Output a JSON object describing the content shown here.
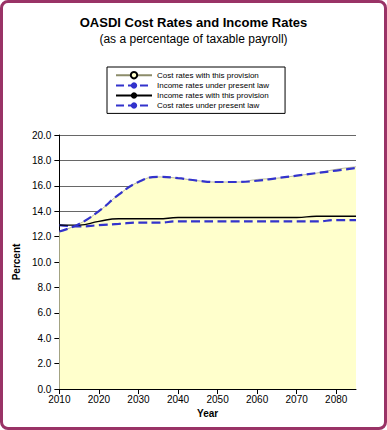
{
  "chart_data": {
    "type": "line",
    "title": "OASDI Cost Rates and Income Rates",
    "subtitle": "(as a percentage of taxable payroll)",
    "x_label": "Year",
    "y_label": "Percent",
    "x": [
      2010,
      2015,
      2020,
      2025,
      2030,
      2035,
      2040,
      2045,
      2050,
      2055,
      2060,
      2065,
      2070,
      2075,
      2080,
      2085
    ],
    "series": [
      {
        "name": "Cost rates with this provision",
        "type": "area",
        "color": "#ffffcc",
        "line_style": "solid",
        "values": [
          12.4,
          13.0,
          14.0,
          15.3,
          16.3,
          16.7,
          16.6,
          16.4,
          16.3,
          16.3,
          16.5,
          16.6,
          16.8,
          17.0,
          17.3,
          17.5
        ]
      },
      {
        "name": "Income rates under present law",
        "type": "line",
        "color": "#3333cc",
        "line_style": "dashed",
        "values": [
          12.9,
          12.8,
          12.9,
          13.0,
          13.1,
          13.1,
          13.2,
          13.2,
          13.2,
          13.2,
          13.2,
          13.2,
          13.2,
          13.2,
          13.3,
          13.3
        ]
      },
      {
        "name": "Income rates with this provision",
        "type": "line",
        "color": "#000000",
        "line_style": "solid",
        "values": [
          12.9,
          12.9,
          13.2,
          13.4,
          13.4,
          13.4,
          13.5,
          13.5,
          13.5,
          13.5,
          13.5,
          13.5,
          13.5,
          13.6,
          13.6,
          13.6
        ]
      },
      {
        "name": "Cost rates under present law",
        "type": "line",
        "color": "#3333cc",
        "line_style": "dashed",
        "values": [
          12.4,
          13.0,
          14.0,
          15.3,
          16.3,
          16.7,
          16.6,
          16.4,
          16.3,
          16.3,
          16.4,
          16.6,
          16.8,
          17.0,
          17.2,
          17.4
        ]
      }
    ],
    "xlim": [
      2010,
      2085
    ],
    "xticks": [
      2010,
      2020,
      2030,
      2040,
      2050,
      2060,
      2070,
      2080
    ],
    "ylim": [
      0,
      20
    ],
    "yticks": [
      {
        "value": 0,
        "label": "0.0"
      },
      {
        "value": 2,
        "label": "2.0"
      },
      {
        "value": 4,
        "label": "4.0"
      },
      {
        "value": 6,
        "label": "6.0"
      },
      {
        "value": 8,
        "label": "8.0"
      },
      {
        "value": 10,
        "label": "10.0"
      },
      {
        "value": 12,
        "label": "12.0"
      },
      {
        "value": 14,
        "label": "14.0"
      },
      {
        "value": 16,
        "label": "16.0"
      },
      {
        "value": 18,
        "label": "18.0"
      },
      {
        "value": 20,
        "label": "20.0"
      }
    ],
    "grid": true,
    "legend": "top"
  }
}
